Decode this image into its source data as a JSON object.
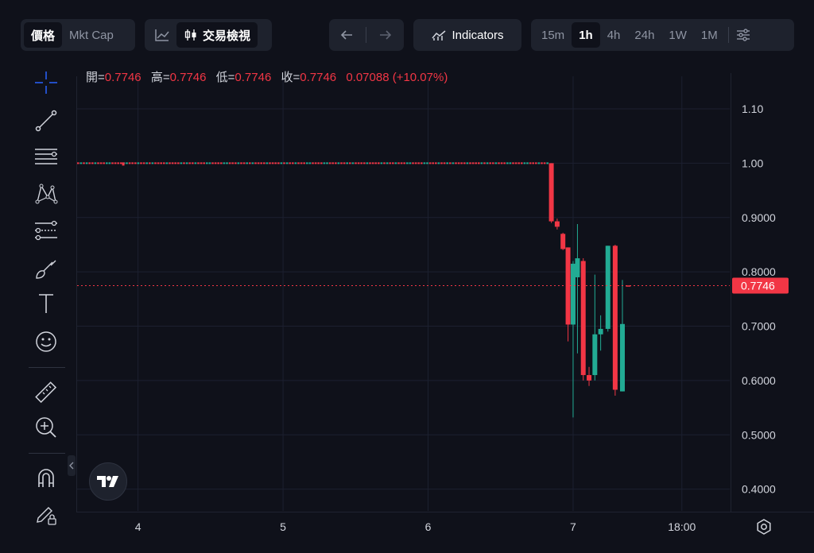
{
  "header": {
    "price_tab": "價格",
    "mktcap_tab": "Mkt Cap",
    "candle_label": "交易檢視",
    "indicators_label": "Indicators",
    "timeframes": [
      "15m",
      "1h",
      "4h",
      "24h",
      "1W",
      "1M"
    ],
    "active_timeframe": "1h"
  },
  "legend": {
    "open_label": "開=",
    "open": "0.7746",
    "high_label": "高=",
    "high": "0.7746",
    "low_label": "低=",
    "low": "0.7746",
    "close_label": "收=",
    "close": "0.7746",
    "change": "0.07088 (+10.07%)"
  },
  "toolbar": {
    "tools": [
      "crosshair-icon",
      "trend-line-icon",
      "fib-icon",
      "pattern-icon",
      "forecast-icon",
      "brush-icon",
      "text-icon",
      "emoji-icon",
      "ruler-icon",
      "zoom-in-icon",
      "magnet-icon",
      "lock-pencil-icon"
    ]
  },
  "colors": {
    "up": "#22ab94",
    "down": "#f23645",
    "background": "#0f111a",
    "grid": "#1c2030",
    "axis_text": "#d1d4dc"
  },
  "chart_data": {
    "type": "candlestick",
    "title": "",
    "current_price": 0.7746,
    "current_price_label": "0.7746",
    "y_ticks": [
      1.1,
      1.0,
      0.9,
      0.8,
      0.7,
      0.6,
      0.5,
      0.4
    ],
    "y_tick_labels": [
      "1.10",
      "1.00",
      "0.9000",
      "0.8000",
      "0.7000",
      "0.6000",
      "0.5000",
      "0.4000"
    ],
    "ylim": [
      0.36,
      1.16
    ],
    "x_ticks": [
      4,
      5,
      6,
      7,
      7.75
    ],
    "x_tick_labels": [
      "4",
      "5",
      "6",
      "7",
      "18:00"
    ],
    "xlim": [
      3.58,
      8.08
    ],
    "grid": true,
    "flat_period": {
      "from": 3.58,
      "to": 6.82,
      "value": 1.0
    },
    "candles": [
      {
        "t": 6.85,
        "o": 1.0,
        "h": 1.0,
        "l": 0.89,
        "c": 0.893
      },
      {
        "t": 6.89,
        "o": 0.893,
        "h": 0.898,
        "l": 0.878,
        "c": 0.883
      },
      {
        "t": 6.93,
        "o": 0.87,
        "h": 0.872,
        "l": 0.84,
        "c": 0.842
      },
      {
        "t": 6.965,
        "o": 0.845,
        "h": 0.845,
        "l": 0.672,
        "c": 0.703
      },
      {
        "t": 7.0,
        "o": 0.703,
        "h": 0.82,
        "l": 0.532,
        "c": 0.815
      },
      {
        "t": 7.03,
        "o": 0.79,
        "h": 0.888,
        "l": 0.65,
        "c": 0.825
      },
      {
        "t": 7.07,
        "o": 0.82,
        "h": 0.825,
        "l": 0.6,
        "c": 0.61
      },
      {
        "t": 7.11,
        "o": 0.61,
        "h": 0.625,
        "l": 0.59,
        "c": 0.6
      },
      {
        "t": 7.15,
        "o": 0.61,
        "h": 0.795,
        "l": 0.6,
        "c": 0.685
      },
      {
        "t": 7.19,
        "o": 0.685,
        "h": 0.72,
        "l": 0.655,
        "c": 0.695
      },
      {
        "t": 7.24,
        "o": 0.695,
        "h": 0.848,
        "l": 0.69,
        "c": 0.848
      },
      {
        "t": 7.29,
        "o": 0.848,
        "h": 0.85,
        "l": 0.572,
        "c": 0.583
      },
      {
        "t": 7.34,
        "o": 0.58,
        "h": 0.785,
        "l": 0.58,
        "c": 0.704
      },
      {
        "t": 7.38,
        "o": 0.775,
        "h": 0.775,
        "l": 0.775,
        "c": 0.7746
      }
    ]
  }
}
